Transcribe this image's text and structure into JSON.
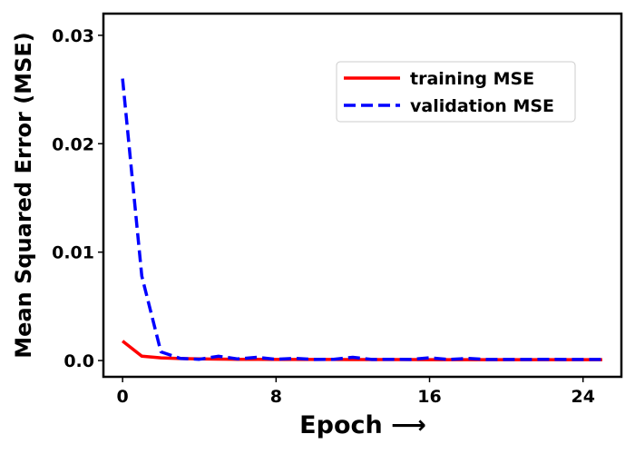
{
  "chart_data": {
    "type": "line",
    "title": "",
    "xlabel": "Epoch ⟶",
    "ylabel": "Mean Squared Error (MSE)",
    "xlim": [
      -1,
      26
    ],
    "ylim": [
      -0.0015,
      0.032
    ],
    "xticks": [
      0,
      8,
      16,
      24
    ],
    "xtick_labels": [
      "0",
      "8",
      "16",
      "24"
    ],
    "yticks": [
      0.0,
      0.01,
      0.02,
      0.03
    ],
    "ytick_labels": [
      "0.0",
      "0.01",
      "0.02",
      "0.03"
    ],
    "grid": false,
    "legend_position": "upper-right",
    "x": [
      0,
      1,
      2,
      3,
      4,
      5,
      6,
      7,
      8,
      9,
      10,
      11,
      12,
      13,
      14,
      15,
      16,
      17,
      18,
      19,
      20,
      21,
      22,
      23,
      24,
      25
    ],
    "series": [
      {
        "name": "training MSE",
        "color": "#ff0000",
        "style": "solid",
        "values": [
          0.0018,
          0.0004,
          0.00025,
          0.00018,
          0.00015,
          0.00013,
          0.00012,
          0.00011,
          0.0001,
          0.0001,
          0.0001,
          0.0001,
          9e-05,
          9e-05,
          9e-05,
          9e-05,
          8e-05,
          8e-05,
          8e-05,
          8e-05,
          8e-05,
          8e-05,
          8e-05,
          8e-05,
          8e-05,
          8e-05
        ]
      },
      {
        "name": "validation MSE",
        "color": "#0000ff",
        "style": "dashed",
        "values": [
          0.026,
          0.0078,
          0.0008,
          0.0002,
          0.00012,
          0.0004,
          0.00015,
          0.0003,
          0.00012,
          0.0002,
          0.0001,
          0.00012,
          0.0003,
          0.0001,
          0.00012,
          0.0001,
          0.00025,
          0.0001,
          0.0002,
          0.0001,
          0.0001,
          0.0001,
          0.00012,
          0.0001,
          0.0001,
          0.0001
        ]
      }
    ]
  }
}
